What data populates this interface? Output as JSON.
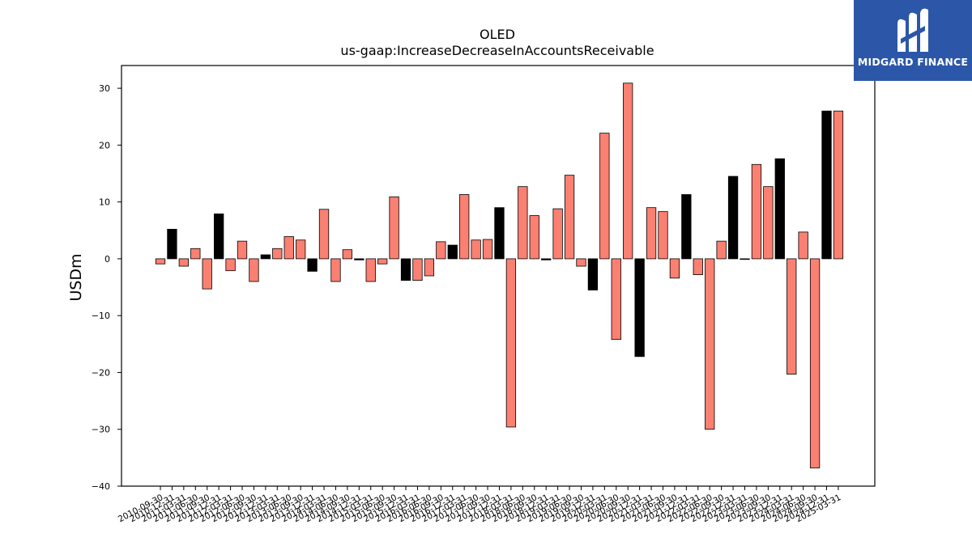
{
  "brand": {
    "name": "MIDGARD FINANCE",
    "mark_icon": "midgard-m-logo-icon",
    "background": "#2c57a8"
  },
  "chart_data": {
    "type": "bar",
    "title": "OLED",
    "subtitle": "us-gaap:IncreaseDecreaseInAccountsReceivable",
    "xlabel": "",
    "ylabel": "USDm",
    "ylim": [
      -40,
      34
    ],
    "yticks": [
      -40,
      -30,
      -20,
      -10,
      0,
      10,
      20,
      30
    ],
    "grid": false,
    "colors": {
      "quarterly": "#fa8072",
      "annual": "#000000"
    },
    "categories": [
      "2010-09-30",
      "2010-12-31",
      "2011-03-31",
      "2011-06-30",
      "2011-09-30",
      "2011-12-31",
      "2012-03-31",
      "2012-06-30",
      "2012-09-30",
      "2012-12-31",
      "2013-03-31",
      "2013-06-30",
      "2013-09-30",
      "2013-12-31",
      "2014-03-31",
      "2014-06-30",
      "2014-09-30",
      "2014-12-31",
      "2015-03-31",
      "2015-06-30",
      "2015-09-30",
      "2015-12-31",
      "2016-03-31",
      "2016-06-30",
      "2016-09-30",
      "2016-12-31",
      "2017-03-31",
      "2017-06-30",
      "2017-09-30",
      "2017-12-31",
      "2018-03-31",
      "2018-06-30",
      "2018-09-30",
      "2018-12-31",
      "2019-03-31",
      "2019-06-30",
      "2019-09-30",
      "2019-12-31",
      "2020-03-31",
      "2020-06-30",
      "2020-09-30",
      "2020-12-31",
      "2021-03-31",
      "2021-06-30",
      "2021-09-30",
      "2021-12-31",
      "2022-03-31",
      "2022-06-30",
      "2022-09-30",
      "2022-12-31",
      "2023-03-31",
      "2023-06-30",
      "2023-09-30",
      "2023-12-31",
      "2024-03-31",
      "2024-06-30",
      "2024-09-30",
      "2024-12-31",
      "2025-03-31"
    ],
    "values": [
      -0.9,
      5.2,
      -1.3,
      1.8,
      -5.3,
      7.9,
      -2.1,
      3.1,
      -4.0,
      0.7,
      1.8,
      3.9,
      3.3,
      -2.2,
      8.7,
      -4.0,
      1.6,
      -0.2,
      -4.0,
      -0.9,
      10.9,
      -3.8,
      -3.8,
      -3.0,
      3.0,
      2.4,
      11.3,
      3.3,
      3.4,
      9.0,
      -29.6,
      12.7,
      7.6,
      -0.2,
      8.8,
      14.7,
      -1.3,
      -5.5,
      22.1,
      -14.2,
      30.9,
      -17.2,
      9.0,
      8.3,
      -3.4,
      11.3,
      -2.8,
      -30.0,
      3.1,
      14.5,
      -0.1,
      16.6,
      12.7,
      17.6,
      -20.3,
      4.7,
      -36.8,
      26.0,
      26.0
    ],
    "is_annual": [
      false,
      true,
      false,
      false,
      false,
      true,
      false,
      false,
      false,
      true,
      false,
      false,
      false,
      true,
      false,
      false,
      false,
      true,
      false,
      false,
      false,
      true,
      false,
      false,
      false,
      true,
      false,
      false,
      false,
      true,
      false,
      false,
      false,
      true,
      false,
      false,
      false,
      true,
      false,
      false,
      false,
      true,
      false,
      false,
      false,
      true,
      false,
      false,
      false,
      true,
      false,
      false,
      false,
      true,
      false,
      false,
      false,
      true,
      false
    ]
  }
}
